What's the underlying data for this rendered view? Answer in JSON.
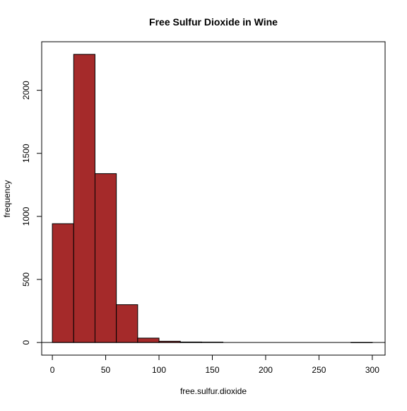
{
  "chart_data": {
    "type": "bar",
    "title": "Free Sulfur Dioxide in Wine",
    "xlabel": "free.sulfur.dioxide",
    "ylabel": "frequency",
    "bin_width": 20,
    "bins": [
      {
        "start": 0,
        "end": 20,
        "count": 942
      },
      {
        "start": 20,
        "end": 40,
        "count": 2285
      },
      {
        "start": 40,
        "end": 60,
        "count": 1339
      },
      {
        "start": 60,
        "end": 80,
        "count": 300
      },
      {
        "start": 80,
        "end": 100,
        "count": 35
      },
      {
        "start": 100,
        "end": 120,
        "count": 10
      },
      {
        "start": 120,
        "end": 140,
        "count": 4
      },
      {
        "start": 140,
        "end": 160,
        "count": 3
      },
      {
        "start": 160,
        "end": 180,
        "count": 0
      },
      {
        "start": 180,
        "end": 200,
        "count": 0
      },
      {
        "start": 200,
        "end": 220,
        "count": 0
      },
      {
        "start": 220,
        "end": 240,
        "count": 0
      },
      {
        "start": 240,
        "end": 260,
        "count": 0
      },
      {
        "start": 260,
        "end": 280,
        "count": 0
      },
      {
        "start": 280,
        "end": 300,
        "count": 1
      }
    ],
    "xlim": [
      -10,
      312
    ],
    "ylim": [
      -100,
      2385
    ],
    "xticks": [
      0,
      50,
      100,
      150,
      200,
      250,
      300
    ],
    "yticks": [
      0,
      500,
      1000,
      1500,
      2000
    ],
    "grid": false,
    "colors": {
      "bar_fill": "#A52A2A",
      "bar_stroke": "#000000",
      "axis": "#000000",
      "background": "#FFFFFF"
    }
  }
}
